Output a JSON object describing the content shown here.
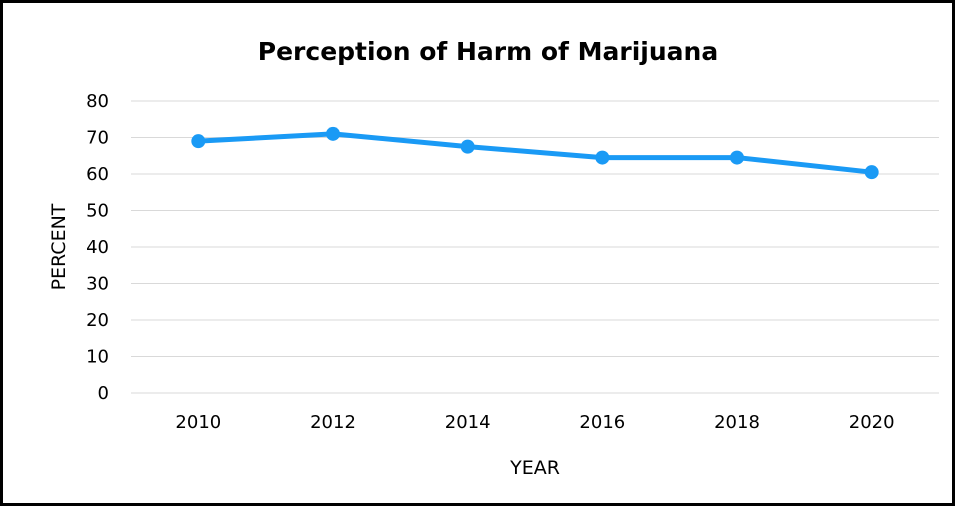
{
  "chart_data": {
    "type": "line",
    "title": "Perception of Harm of Marijuana",
    "xlabel": "YEAR",
    "ylabel": "PERCENT",
    "categories": [
      "2010",
      "2012",
      "2014",
      "2016",
      "2018",
      "2020"
    ],
    "series": [
      {
        "values": [
          69,
          71,
          67.5,
          64.5,
          64.5,
          60.5
        ]
      }
    ],
    "ylim": [
      0,
      80
    ],
    "yticks": [
      "0",
      "10",
      "20",
      "30",
      "40",
      "50",
      "60",
      "70",
      "80"
    ],
    "grid": true,
    "legend": "none",
    "colors": {
      "series": "#1a9af5",
      "grid": "#d9d9d9",
      "border": "#000000"
    }
  }
}
